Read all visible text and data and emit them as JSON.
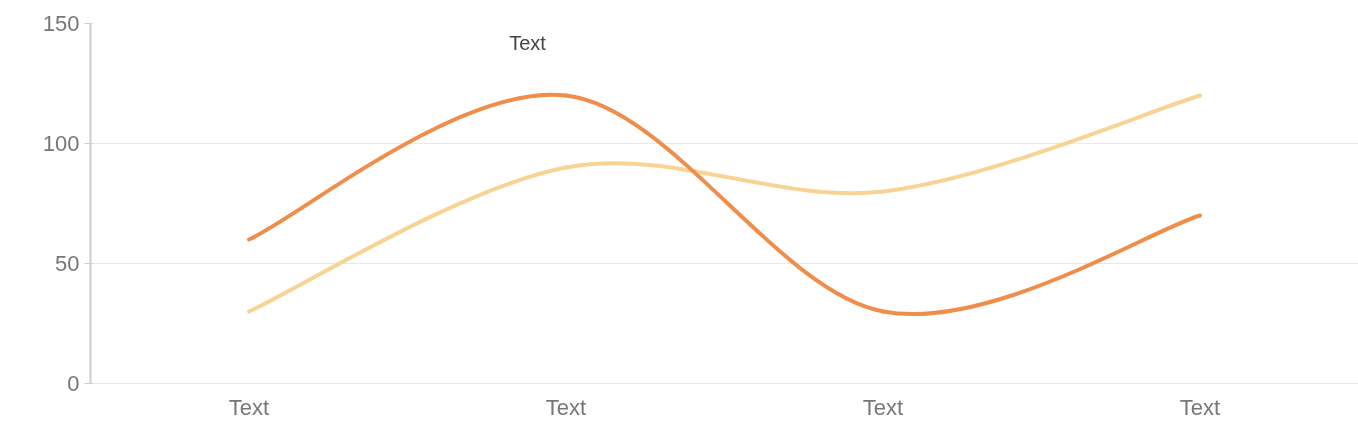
{
  "chart_data": {
    "type": "line",
    "categories": [
      "Text",
      "Text",
      "Text",
      "Text"
    ],
    "series": [
      {
        "color": "#f7d494",
        "values": [
          30,
          90,
          80,
          120
        ]
      },
      {
        "color": "#ef8d4b",
        "values": [
          60,
          120,
          30,
          70
        ]
      }
    ],
    "ylim": [
      0,
      150
    ],
    "yticks": [
      0,
      50,
      100,
      150
    ],
    "grid": "y",
    "marker": "none",
    "line_style": "solid",
    "annotations": [
      "Text"
    ]
  }
}
